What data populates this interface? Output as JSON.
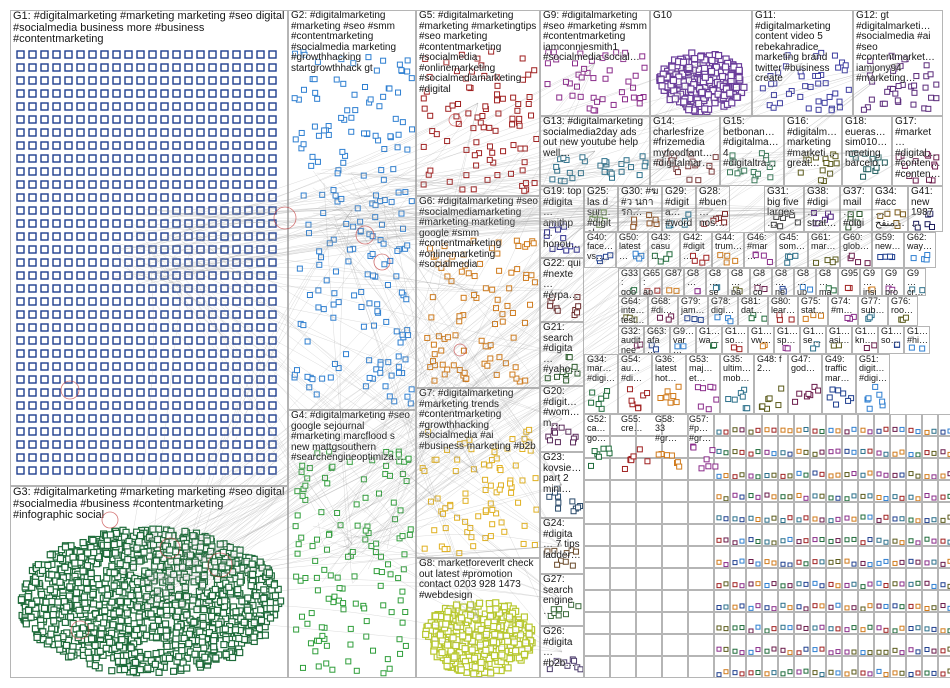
{
  "groups": [
    {
      "id": "G1",
      "label": "G1: #digitalmarketing #marketing marketing #seo digital #socialmedia business more #business #contentmarketing",
      "color": "#1f3f8f"
    },
    {
      "id": "G2",
      "label": "G2: #digitalmarketing #marketing #seo #smm #contentmarketing #socialmedia marketing #growthhacking startgrowthhack gt",
      "color": "#2e7fd1"
    },
    {
      "id": "G3",
      "label": "G3: #digitalmarketing #marketing marketing #seo digital #socialmedia #business #contentmarketing #infographic social",
      "color": "#1e6b3a"
    },
    {
      "id": "G4",
      "label": "G4: #digitalmarketing #seo google sejournal #marketing marcflood s new mattgsouthern #searchengineoptimiza…",
      "color": "#2f9e3a"
    },
    {
      "id": "G5",
      "label": "G5: #digitalmarketing #marketing #marketingtips #seo marketing #contentmarketing #socialmedia #onlinemarketing #socialmediamarketing #digital",
      "color": "#a02020"
    },
    {
      "id": "G6",
      "label": "G6: #digitalmarketing #seo #socialmediamarketing #marketing marketing google #smm #contentmarketing #onlinemarketing #socialmedia",
      "color": "#d07a1a"
    },
    {
      "id": "G7",
      "label": "G7: #digitalmarketing #marketing trends #contentmarketing #growthhacking #socialmedia #ai #business marketing #b2b",
      "color": "#e0b020"
    },
    {
      "id": "G8",
      "label": "G8: marketforeverlt check out latest #promotion contact 0203 928 1473 #webdesign",
      "color": "#b8c830"
    },
    {
      "id": "G9",
      "label": "G9: #digitalmarketing #seo #marketing #smm #contentmarketing iamconniesmith1 #socialmedia social…",
      "color": "#8a2c8a"
    },
    {
      "id": "G10",
      "label": "G10",
      "color": "#6a3d9a"
    },
    {
      "id": "G11",
      "label": "G11: #digitalmarketing content video 5 rebekahradice marketing brand twitter #business create",
      "color": "#3d3da0"
    },
    {
      "id": "G12",
      "label": "G12: gt #digitalmarketi… #socialmedia #ai #seo #contentmarket… iamjony94 #marketing…",
      "color": "#5a2a7a"
    },
    {
      "id": "G13",
      "label": "G13: #digitalmarketing socialmedia2day ads out new youtube help well…",
      "color": "#2a6f8a"
    },
    {
      "id": "G14",
      "label": "G14: charlesfrize #frizemedia myfoodfant… #digitalmar…",
      "color": "#7a3a3a"
    },
    {
      "id": "G15",
      "label": "G15: betbonan… #digitalma… 4 #digitaltra…",
      "color": "#3a7a5a"
    },
    {
      "id": "G16",
      "label": "G16: #digitalm… marketing #marketi… great…",
      "color": "#5a5a1a"
    },
    {
      "id": "G18",
      "label": "G18: eueras… sim010… meeting barcelo…",
      "color": "#1a5a5a"
    },
    {
      "id": "G17",
      "label": "G17: #market… #digital… #conten… #conten…",
      "color": "#6a1a4a"
    },
    {
      "id": "G19",
      "label": "G19: top #digita… amithp… honou…",
      "color": "#2a2a8a"
    },
    {
      "id": "G25",
      "label": "G25: las d sur… #digital…",
      "color": "#4a7a2a"
    },
    {
      "id": "G30",
      "label": "G30: #ฆ #ว นการก…",
      "color": "#8a4a1a"
    },
    {
      "id": "G29",
      "label": "G29: #digita… #word…",
      "color": "#1a6a8a"
    },
    {
      "id": "G28",
      "label": "G28: #buen… nos…",
      "color": "#7a1a1a"
    },
    {
      "id": "G31",
      "label": "G31: big five larges…",
      "color": "#3a3a3a"
    },
    {
      "id": "G38",
      "label": "G38: #digi… strat…",
      "color": "#4a1a7a"
    },
    {
      "id": "G37",
      "label": "G37: mail… #digi…",
      "color": "#1a4a1a"
    },
    {
      "id": "G34",
      "label": "G34: #acc… منقح…",
      "color": "#7a5a1a"
    },
    {
      "id": "G41",
      "label": "G41: new 1987…",
      "color": "#1a1a5a"
    },
    {
      "id": "G22",
      "label": "G22: qui #nexte… #érpa…",
      "color": "#6a2a2a"
    },
    {
      "id": "G21",
      "label": "G21: search #digita… #yaho…",
      "color": "#2a5a2a"
    },
    {
      "id": "G20",
      "label": "G20: #digit… #wom… m…",
      "color": "#5a2a5a"
    },
    {
      "id": "G23",
      "label": "G23: kovsie… part 2 mini…",
      "color": "#2a4a6a"
    },
    {
      "id": "G24",
      "label": "G24: #digita… 7 tips ladder…",
      "color": "#6a4a2a"
    },
    {
      "id": "G27",
      "label": "G27: search engine…",
      "color": "#3a6a3a"
    },
    {
      "id": "G26",
      "label": "G26: #digita… #b2b…",
      "color": "#4a3a6a"
    }
  ],
  "small_group_labels": [
    "G40: face… vs…",
    "G50: latest…",
    "G43: casu…",
    "G42: #digit…",
    "G44: trum…",
    "G46: #mar…",
    "G45: som…",
    "G61: mar…",
    "G60: glob…",
    "G59: new…",
    "G62: way…",
    "G33: goo…",
    "G65: ap… vita…",
    "G87",
    "G8…",
    "G8… se…",
    "G8… pa…",
    "G8… co…",
    "G8… ne…",
    "G8… up…",
    "G8… ma…",
    "G95",
    "G9… insi…",
    "G9… pro…",
    "G9… cr…",
    "G64: inte… test…",
    "G68: #di…",
    "G79: jam…",
    "G78: digi…",
    "G81: dat…",
    "G80: lear…",
    "G75: stat…",
    "G74: #m…",
    "G77: sub…",
    "G76: roo…",
    "G32: audit nee…",
    "G63: afa… aks…",
    "G9… var…",
    "G1… wa…",
    "G1… so…",
    "G1… vw…",
    "G1… sp…",
    "G1… se…",
    "G1… asi…",
    "G1… kn…",
    "G1… so…",
    "G1… #hi…",
    "G34: mar… #digi…",
    "G54: au… #di…",
    "G36: latest hot…",
    "G53: maj… et…",
    "G35: ultim… mob…",
    "G48: f 2…",
    "G47: god…",
    "G49: traffic mar…",
    "G51: digit… #digi…",
    "G52: ca… go…",
    "G55: cre…",
    "G58: 33 #gr…",
    "G57: #p… #gr…",
    "G56: daily ne…"
  ],
  "colors": {
    "edge": "#9a9a9a",
    "border": "#b5b5b5",
    "selfloop": "#c23a3a"
  }
}
